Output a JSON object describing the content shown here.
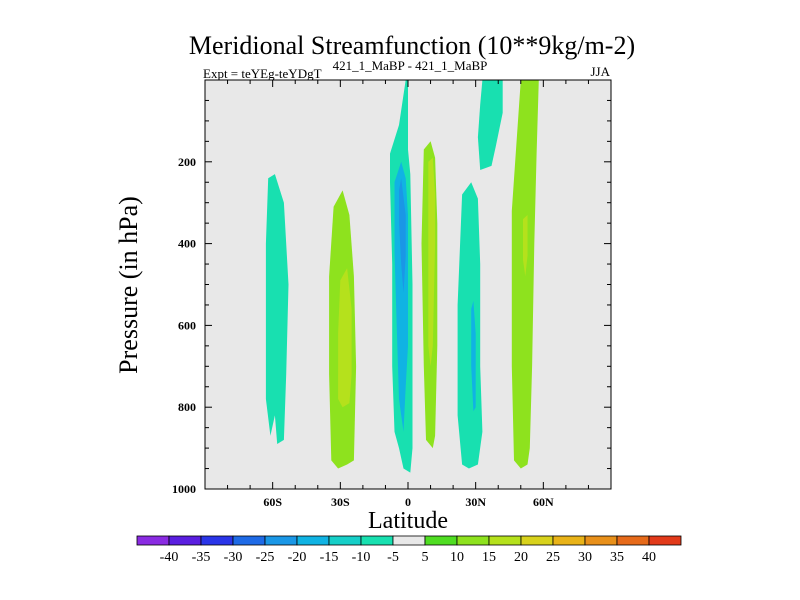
{
  "chart_data": {
    "type": "contour-fill",
    "title": "Meridional Streamfunction (10**9kg/m-2)",
    "subtitle_left": "Expt = teYEg-teYDgT",
    "subtitle_center": "421_1_MaBP - 421_1_MaBP",
    "subtitle_right": "JJA",
    "xlabel": "Latitude",
    "ylabel": "Pressure (in hPa)",
    "xlim": [
      -90,
      90
    ],
    "ylim": [
      1000,
      0
    ],
    "x_ticks": [
      {
        "value": -60,
        "label": "60S"
      },
      {
        "value": -30,
        "label": "30S"
      },
      {
        "value": 0,
        "label": "0"
      },
      {
        "value": 30,
        "label": "30N"
      },
      {
        "value": 60,
        "label": "60N"
      }
    ],
    "y_ticks": [
      {
        "value": 200,
        "label": "200"
      },
      {
        "value": 400,
        "label": "400"
      },
      {
        "value": 600,
        "label": "600"
      },
      {
        "value": 800,
        "label": "800"
      },
      {
        "value": 1000,
        "label": "1000"
      }
    ],
    "background_color": "#e8e8e8",
    "colorbar": {
      "labels": [
        "-40",
        "-35",
        "-30",
        "-25",
        "-20",
        "-15",
        "-10",
        "-5",
        "5",
        "10",
        "15",
        "20",
        "25",
        "30",
        "35",
        "40"
      ],
      "colors": [
        "#8a2be2",
        "#5a1ee0",
        "#2a35e8",
        "#1e6ae6",
        "#1a97e6",
        "#10b3e3",
        "#16cfc8",
        "#18e0b0",
        "#e8e8e8",
        "#4fdd22",
        "#8ee21e",
        "#b5e11c",
        "#d8d21c",
        "#e9b318",
        "#e8901a",
        "#e66a1a",
        "#e23a1a"
      ]
    },
    "regions": [
      {
        "name": "cell-60s",
        "range": "-10 to -5",
        "color": "#18e0b0",
        "points": [
          [
            -62,
            240
          ],
          [
            -59,
            230
          ],
          [
            -55,
            300
          ],
          [
            -53,
            500
          ],
          [
            -54,
            720
          ],
          [
            -55,
            880
          ],
          [
            -58,
            890
          ],
          [
            -59,
            820
          ],
          [
            -61,
            870
          ],
          [
            -63,
            780
          ],
          [
            -63,
            400
          ]
        ]
      },
      {
        "name": "cell-30s",
        "range": "5 to 10",
        "color": "#8ee21e",
        "points": [
          [
            -33,
            310
          ],
          [
            -29,
            270
          ],
          [
            -26,
            330
          ],
          [
            -24,
            480
          ],
          [
            -23,
            700
          ],
          [
            -24,
            930
          ],
          [
            -27,
            940
          ],
          [
            -31,
            950
          ],
          [
            -34,
            930
          ],
          [
            -35,
            720
          ],
          [
            -35,
            480
          ]
        ]
      },
      {
        "name": "cell-30s-core",
        "range": "10 to 15",
        "color": "#b5e11c",
        "points": [
          [
            -30,
            490
          ],
          [
            -27,
            460
          ],
          [
            -25,
            560
          ],
          [
            -25,
            720
          ],
          [
            -26,
            790
          ],
          [
            -29,
            800
          ],
          [
            -31,
            780
          ],
          [
            -31,
            620
          ]
        ]
      },
      {
        "name": "cell-eq-outer",
        "range": "-10 to -5",
        "color": "#18e0b0",
        "points": [
          [
            -8,
            180
          ],
          [
            -4,
            110
          ],
          [
            -1,
            0
          ],
          [
            0,
            0
          ],
          [
            0,
            170
          ],
          [
            1,
            230
          ],
          [
            2,
            500
          ],
          [
            2,
            900
          ],
          [
            1,
            960
          ],
          [
            -2,
            950
          ],
          [
            -4,
            900
          ],
          [
            -6,
            860
          ],
          [
            -7,
            700
          ],
          [
            -7,
            450
          ],
          [
            -8,
            250
          ]
        ]
      },
      {
        "name": "cell-eq-mid",
        "range": "-15 to -10",
        "color": "#10b3e3",
        "points": [
          [
            -6,
            250
          ],
          [
            -3,
            200
          ],
          [
            -1,
            240
          ],
          [
            0,
            330
          ],
          [
            0,
            500
          ],
          [
            0,
            650
          ],
          [
            -1,
            750
          ],
          [
            -2,
            860
          ],
          [
            -4,
            780
          ],
          [
            -5,
            600
          ],
          [
            -6,
            420
          ]
        ]
      },
      {
        "name": "cell-eq-inner",
        "range": "-20 to -15",
        "color": "#1a97e6",
        "points": [
          [
            -4,
            270
          ],
          [
            -3,
            240
          ],
          [
            -1,
            330
          ],
          [
            -1,
            430
          ],
          [
            -2,
            520
          ],
          [
            -3,
            450
          ],
          [
            -4,
            350
          ]
        ]
      },
      {
        "name": "cell-10n",
        "range": "5 to 10",
        "color": "#8ee21e",
        "points": [
          [
            7,
            170
          ],
          [
            10,
            150
          ],
          [
            12,
            190
          ],
          [
            13,
            350
          ],
          [
            13,
            650
          ],
          [
            12,
            870
          ],
          [
            11,
            900
          ],
          [
            8,
            880
          ],
          [
            7,
            700
          ],
          [
            6,
            400
          ]
        ]
      },
      {
        "name": "cell-10n-core",
        "range": "10 to 15",
        "color": "#b5e11c",
        "points": [
          [
            9,
            200
          ],
          [
            11,
            190
          ],
          [
            12,
            280
          ],
          [
            12,
            400
          ],
          [
            11,
            650
          ],
          [
            10,
            700
          ],
          [
            9,
            650
          ],
          [
            9,
            400
          ]
        ]
      },
      {
        "name": "cell-30n",
        "range": "-10 to -5",
        "color": "#18e0b0",
        "points": [
          [
            24,
            280
          ],
          [
            28,
            250
          ],
          [
            31,
            290
          ],
          [
            32,
            450
          ],
          [
            32,
            700
          ],
          [
            33,
            860
          ],
          [
            31,
            940
          ],
          [
            27,
            950
          ],
          [
            24,
            940
          ],
          [
            22,
            820
          ],
          [
            22,
            550
          ]
        ]
      },
      {
        "name": "cell-30n-core",
        "range": "-15 to -10",
        "color": "#10b3e3",
        "points": [
          [
            28,
            560
          ],
          [
            29,
            540
          ],
          [
            30,
            620
          ],
          [
            30,
            800
          ],
          [
            29,
            810
          ],
          [
            28,
            700
          ]
        ]
      },
      {
        "name": "cell-30n-top",
        "range": "-10 to -5",
        "color": "#18e0b0",
        "points": [
          [
            33,
            0
          ],
          [
            42,
            0
          ],
          [
            42,
            80
          ],
          [
            39,
            160
          ],
          [
            37,
            210
          ],
          [
            32,
            220
          ],
          [
            31,
            140
          ],
          [
            32,
            60
          ]
        ]
      },
      {
        "name": "cell-55n",
        "range": "5 to 10",
        "color": "#8ee21e",
        "points": [
          [
            50,
            0
          ],
          [
            58,
            0
          ],
          [
            57,
            180
          ],
          [
            56,
            400
          ],
          [
            55,
            700
          ],
          [
            54,
            900
          ],
          [
            53,
            940
          ],
          [
            50,
            950
          ],
          [
            47,
            930
          ],
          [
            46,
            700
          ],
          [
            46,
            320
          ],
          [
            48,
            160
          ]
        ]
      },
      {
        "name": "cell-55n-core",
        "range": "10 to 15",
        "color": "#b5e11c",
        "points": [
          [
            51,
            340
          ],
          [
            53,
            330
          ],
          [
            53,
            430
          ],
          [
            52,
            480
          ],
          [
            51,
            440
          ]
        ]
      }
    ]
  }
}
